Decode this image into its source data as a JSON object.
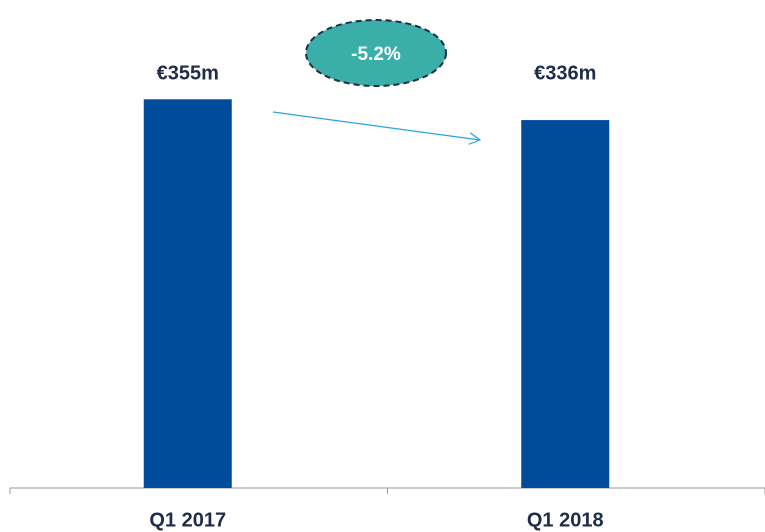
{
  "chart_data": {
    "type": "bar",
    "categories": [
      "Q1 2017",
      "Q1 2018"
    ],
    "values": [
      355,
      336
    ],
    "value_labels": [
      "€355m",
      "€336m"
    ],
    "color": "#004c9b",
    "ylim": [
      0,
      400
    ],
    "annotation": "-5.2%"
  }
}
